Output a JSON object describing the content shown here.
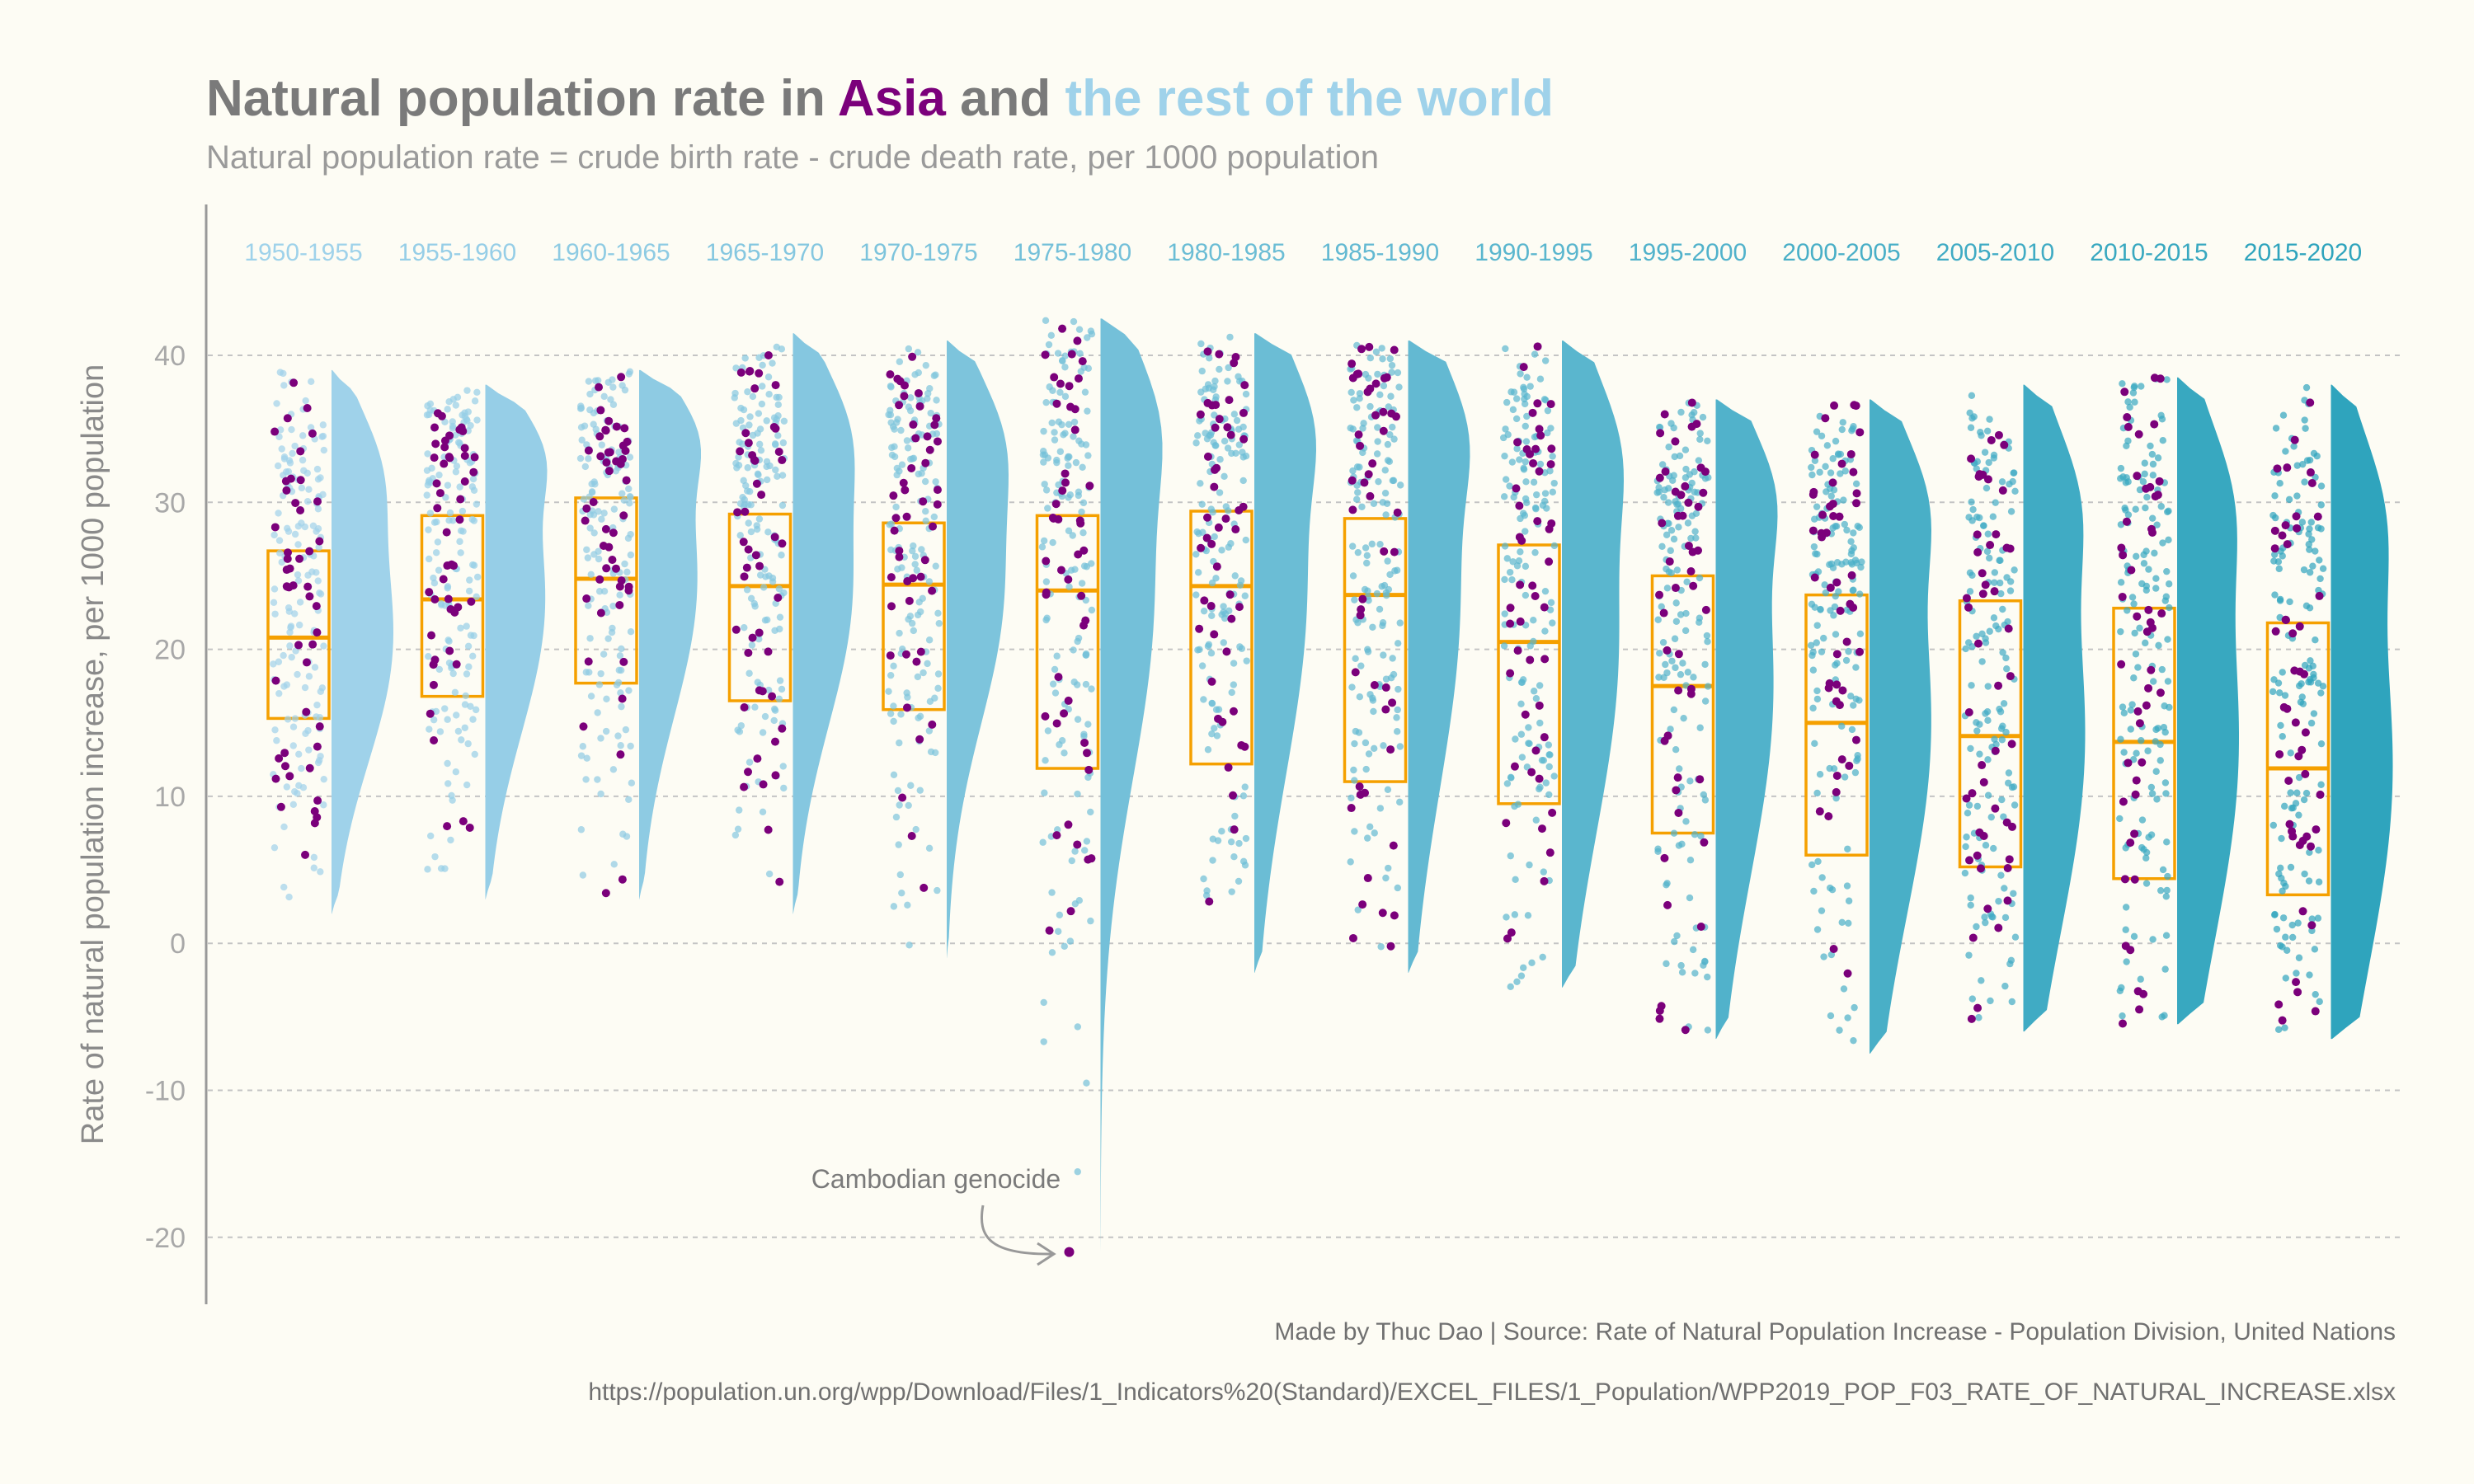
{
  "title": {
    "prefix": "Natural population rate in ",
    "asia": "Asia",
    "middle": " and ",
    "world": "the rest of the world"
  },
  "subtitle": "Natural population rate = crude birth rate - crude death rate, per 1000 population",
  "caption": {
    "line1": "Made by Thuc Dao | Source: Rate of Natural Population Increase - Population Division, United Nations",
    "line2": "https://population.un.org/wpp/Download/Files/1_Indicators%20(Standard)/EXCEL_FILES/1_Population/WPP2019_POP_F03_RATE_OF_NATURAL_INCREASE.xlsx"
  },
  "annotation": {
    "text": "Cambodian genocide",
    "period": "1975-1980",
    "value": -21
  },
  "colors": {
    "asia": "#7b007b",
    "world_light": "#9fd2ea",
    "world_dark": "#2fa4bd",
    "box": "#f5a000",
    "title_gray": "#7a7a7a",
    "background": "#fdfcf4"
  },
  "chart_data": {
    "type": "raincloud (box + jittered points + half violin)",
    "ylabel": "Rate of natural population increase, per 1000 population",
    "xlabel": "",
    "ylim": [
      -24,
      50
    ],
    "yticks": [
      -20,
      -10,
      0,
      10,
      20,
      30,
      40
    ],
    "grid": "horizontal dashed",
    "categories": [
      "1950-1955",
      "1955-1960",
      "1960-1965",
      "1965-1970",
      "1970-1975",
      "1975-1980",
      "1980-1985",
      "1985-1990",
      "1990-1995",
      "1995-2000",
      "2000-2005",
      "2005-2010",
      "2010-2015",
      "2015-2020"
    ],
    "box": {
      "q1": [
        15.3,
        16.8,
        17.7,
        16.5,
        15.9,
        11.9,
        12.2,
        11.0,
        9.5,
        7.5,
        6.0,
        5.2,
        4.4,
        3.3
      ],
      "median": [
        20.8,
        23.4,
        24.8,
        24.3,
        24.4,
        24.0,
        24.3,
        23.7,
        20.5,
        17.5,
        15.0,
        14.1,
        13.7,
        11.9
      ],
      "q3": [
        26.7,
        29.1,
        30.3,
        29.2,
        28.6,
        29.1,
        29.4,
        28.9,
        27.1,
        25.0,
        23.7,
        23.3,
        22.8,
        21.8
      ]
    },
    "range_min": [
      2,
      3,
      3,
      2,
      -1,
      -21,
      -2,
      -2,
      -3,
      -6.5,
      -7.5,
      -6,
      -5.5,
      -6.5
    ],
    "range_max": [
      39,
      38,
      39,
      41.5,
      41,
      42.5,
      41.5,
      41,
      41,
      37,
      37,
      38,
      38.5,
      38
    ],
    "series": [
      {
        "name": "Asia",
        "n_points_per_period": 48
      },
      {
        "name": "the rest of the world",
        "n_points_per_period": 150
      }
    ]
  }
}
